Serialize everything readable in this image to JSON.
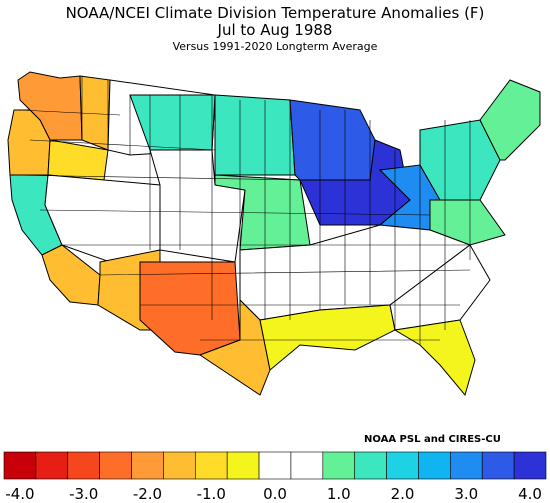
{
  "title": "NOAA/NCEI Climate Division Temperature Anomalies (F)",
  "period": "Jul to Aug 1988",
  "subtitle": "Versus 1991-2020 Longterm Average",
  "credit": "NOAA PSL and CIRES-CU",
  "legend": {
    "colors": [
      "#c8000a",
      "#e61e14",
      "#f5461e",
      "#ff6e28",
      "#ff9b37",
      "#ffbe32",
      "#ffdc28",
      "#f5f51e",
      "#ffffff",
      "#ffffff",
      "#64f096",
      "#3ce6be",
      "#1ed2e6",
      "#10b4f0",
      "#1e8cf0",
      "#2d5ae6",
      "#2d32d7"
    ],
    "ticks": [
      "-4.0",
      "-3.0",
      "-2.0",
      "-1.0",
      "0.0",
      "1.0",
      "2.0",
      "3.0",
      "4.0"
    ]
  },
  "regions": [
    {
      "name": "washington-west",
      "color": "#ff9b37"
    },
    {
      "name": "washington-east",
      "color": "#ffbe32"
    },
    {
      "name": "oregon-coast",
      "color": "#ffbe32"
    },
    {
      "name": "oregon-interior",
      "color": "#ffdc28"
    },
    {
      "name": "idaho-montana",
      "color": "#ffffff"
    },
    {
      "name": "montana-east",
      "color": "#3ce6be"
    },
    {
      "name": "california-north",
      "color": "#3ce6be"
    },
    {
      "name": "california-south",
      "color": "#ffbe32"
    },
    {
      "name": "nevada-utah",
      "color": "#ffffff"
    },
    {
      "name": "arizona",
      "color": "#ffbe32"
    },
    {
      "name": "new-mexico",
      "color": "#ff6e28"
    },
    {
      "name": "colorado-wyoming",
      "color": "#ffffff"
    },
    {
      "name": "dakotas",
      "color": "#3ce6be"
    },
    {
      "name": "nebraska-kansas",
      "color": "#64f096"
    },
    {
      "name": "upper-midwest",
      "color": "#2d5ae6"
    },
    {
      "name": "great-lakes-core",
      "color": "#2d32d7"
    },
    {
      "name": "ohio-valley",
      "color": "#1e8cf0"
    },
    {
      "name": "northeast",
      "color": "#3ce6be"
    },
    {
      "name": "new-england",
      "color": "#64f096"
    },
    {
      "name": "mid-atlantic",
      "color": "#64f096"
    },
    {
      "name": "south-central",
      "color": "#ffffff"
    },
    {
      "name": "texas-west",
      "color": "#ffbe32"
    },
    {
      "name": "gulf-coast",
      "color": "#f5f51e"
    },
    {
      "name": "southeast",
      "color": "#ffffff"
    },
    {
      "name": "florida",
      "color": "#f5f51e"
    }
  ]
}
